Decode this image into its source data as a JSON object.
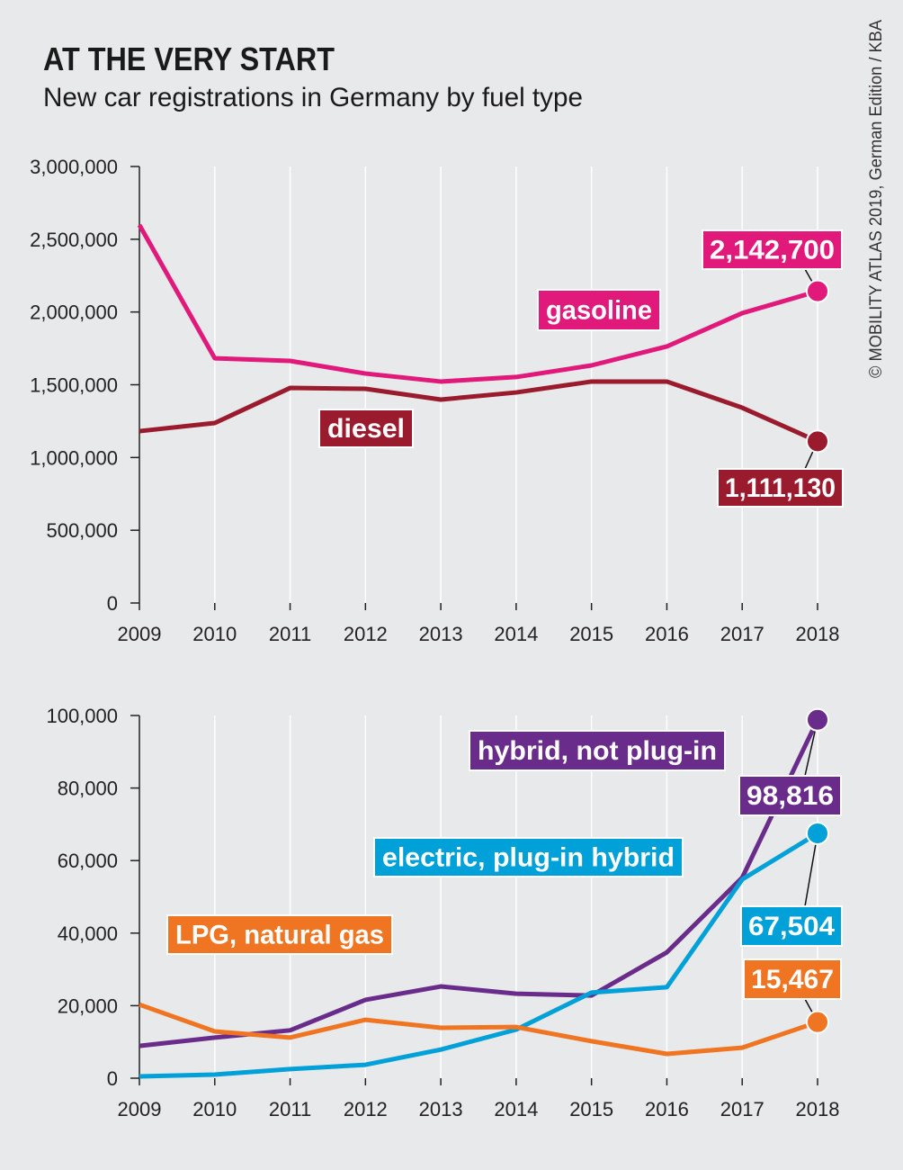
{
  "title": "AT THE VERY START",
  "subtitle": "New car registrations in Germany by fuel type",
  "credit": "© MOBILITY ATLAS 2019, German Edition / KBA",
  "chart_data": [
    {
      "type": "line",
      "x": [
        2009,
        2010,
        2011,
        2012,
        2013,
        2014,
        2015,
        2016,
        2017,
        2018
      ],
      "x_tick_labels": [
        "2009",
        "2010",
        "2011",
        "2012",
        "2013",
        "2014",
        "2015",
        "2016",
        "2017",
        "2018"
      ],
      "ylim": [
        0,
        3000000
      ],
      "y_ticks": [
        0,
        500000,
        1000000,
        1500000,
        2000000,
        2500000,
        3000000
      ],
      "y_tick_labels": [
        "0",
        "500,000",
        "1,000,000",
        "1,500,000",
        "2,000,000",
        "2,500,000",
        "3,000,000"
      ],
      "grid": "vertical",
      "series": [
        {
          "name": "gasoline",
          "color": "#e0197a",
          "values": [
            2598000,
            1682000,
            1664000,
            1577000,
            1522000,
            1553000,
            1633000,
            1763000,
            1992000,
            2142700
          ],
          "end_label": "2,142,700"
        },
        {
          "name": "diesel",
          "color": "#9b1b2e",
          "values": [
            1181000,
            1237000,
            1478000,
            1472000,
            1398000,
            1447000,
            1522000,
            1522000,
            1342000,
            1111130
          ],
          "end_label": "1,111,130"
        }
      ]
    },
    {
      "type": "line",
      "x": [
        2009,
        2010,
        2011,
        2012,
        2013,
        2014,
        2015,
        2016,
        2017,
        2018
      ],
      "x_tick_labels": [
        "2009",
        "2010",
        "2011",
        "2012",
        "2013",
        "2014",
        "2015",
        "2016",
        "2017",
        "2018"
      ],
      "ylim": [
        0,
        100000
      ],
      "y_ticks": [
        0,
        20000,
        40000,
        60000,
        80000,
        100000
      ],
      "y_tick_labels": [
        "0",
        "20,000",
        "40,000",
        "60,000",
        "80,000",
        "100,000"
      ],
      "grid": "vertical",
      "series": [
        {
          "name": "hybrid, not plug-in",
          "color": "#6a2c8a",
          "values": [
            8900,
            11200,
            13200,
            21600,
            25300,
            23300,
            22800,
            34700,
            55300,
            98816
          ],
          "end_label": "98,816"
        },
        {
          "name": "electric, plug-in hybrid",
          "color": "#00a0d8",
          "values": [
            500,
            1000,
            2500,
            3700,
            7900,
            13400,
            23600,
            25100,
            54800,
            67504
          ],
          "end_label": "67,504"
        },
        {
          "name": "LPG, natural gas",
          "color": "#f07522",
          "values": [
            20300,
            12900,
            11200,
            16100,
            13900,
            14100,
            10200,
            6700,
            8400,
            15467
          ],
          "end_label": "15,467"
        }
      ]
    }
  ]
}
